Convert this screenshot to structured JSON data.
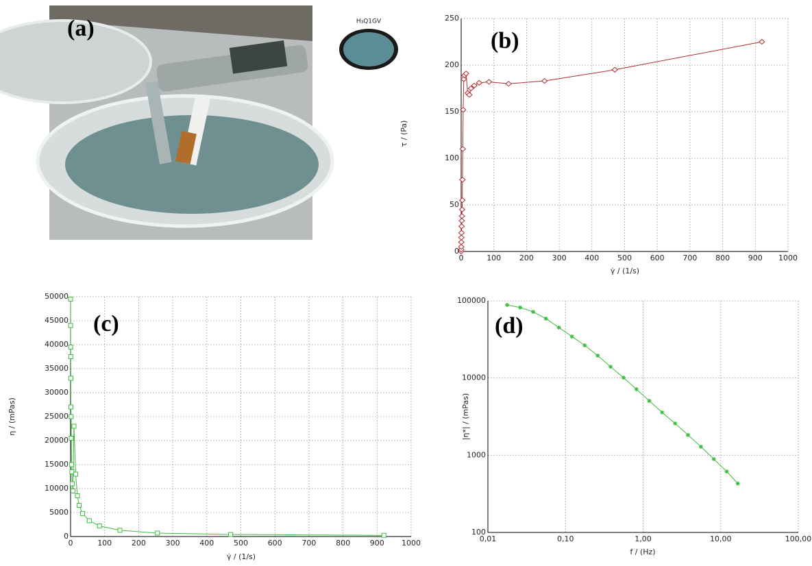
{
  "panel_a": {
    "label": "(a)",
    "inset_label": "H₃Q1GV"
  },
  "chart_data": [
    {
      "type": "line",
      "label": "(b)",
      "xlabel": "γ̇ / (1/s)",
      "ylabel": "τ / (Pa)",
      "color": "#b22a2a",
      "marker": "diamond",
      "x": [
        0.1,
        0.2,
        0.3,
        0.5,
        0.7,
        1,
        1.5,
        2,
        2.5,
        3,
        3.5,
        4,
        5,
        6,
        8,
        10,
        15,
        20,
        25,
        30,
        40,
        55,
        85,
        145,
        255,
        470,
        920
      ],
      "values": [
        0,
        2,
        5,
        10,
        15,
        20,
        27,
        33,
        38,
        45,
        55,
        77,
        110,
        152,
        185,
        189,
        191,
        170,
        168,
        175,
        178,
        181,
        182,
        180,
        183,
        195,
        225
      ],
      "xlim": [
        0,
        1000
      ],
      "ylim": [
        0,
        250
      ],
      "xticks": [
        0,
        100,
        200,
        300,
        400,
        500,
        600,
        700,
        800,
        900,
        1000
      ],
      "yticks": [
        0,
        50,
        100,
        150,
        200,
        250
      ],
      "grid": true
    },
    {
      "type": "line",
      "label": "(c)",
      "xlabel": "γ̇ / (1/s)",
      "ylabel": "η / (mPas)",
      "color": "#3dbb3d",
      "marker": "square",
      "x": [
        0.1,
        0.2,
        0.3,
        0.5,
        0.8,
        1,
        1.5,
        2,
        3,
        4,
        5,
        7,
        10,
        15,
        20,
        25,
        35,
        55,
        85,
        145,
        255,
        470,
        920
      ],
      "values": [
        49500,
        44000,
        39500,
        37500,
        33000,
        27000,
        25000,
        20500,
        15000,
        13500,
        11000,
        9500,
        23000,
        13000,
        8500,
        6500,
        4800,
        3300,
        2200,
        1300,
        720,
        420,
        250
      ],
      "xlim": [
        0,
        1000
      ],
      "ylim": [
        0,
        50000
      ],
      "xticks": [
        0,
        100,
        200,
        300,
        400,
        500,
        600,
        700,
        800,
        900,
        1000
      ],
      "yticks": [
        0,
        5000,
        10000,
        15000,
        20000,
        25000,
        30000,
        35000,
        40000,
        45000,
        50000
      ],
      "grid": true
    },
    {
      "type": "line",
      "label": "(d)",
      "xlabel": "f / (Hz)",
      "ylabel": "|η*| / (mPas)",
      "color": "#3dbb3d",
      "marker": "star",
      "xscale": "log",
      "yscale": "log",
      "x": [
        0.0177,
        0.026,
        0.0383,
        0.056,
        0.0822,
        0.121,
        0.177,
        0.26,
        0.381,
        0.559,
        0.82,
        1.2,
        1.76,
        2.59,
        3.79,
        5.56,
        8.16,
        11.97,
        16.6
      ],
      "values": [
        88500,
        82000,
        72000,
        58800,
        45100,
        34500,
        26500,
        19500,
        14000,
        10100,
        7170,
        5060,
        3580,
        2580,
        1830,
        1290,
        890,
        615,
        430
      ],
      "xlim": [
        0.01,
        100
      ],
      "ylim": [
        100,
        100000
      ],
      "xticks": [
        {
          "value": 0.01,
          "label": "0,01"
        },
        {
          "value": 0.1,
          "label": "0,10"
        },
        {
          "value": 1,
          "label": "1,00"
        },
        {
          "value": 10,
          "label": "10,00"
        },
        {
          "value": 100,
          "label": "100,00"
        }
      ],
      "yticks": [
        100,
        1000,
        10000,
        100000
      ],
      "grid": true
    }
  ]
}
